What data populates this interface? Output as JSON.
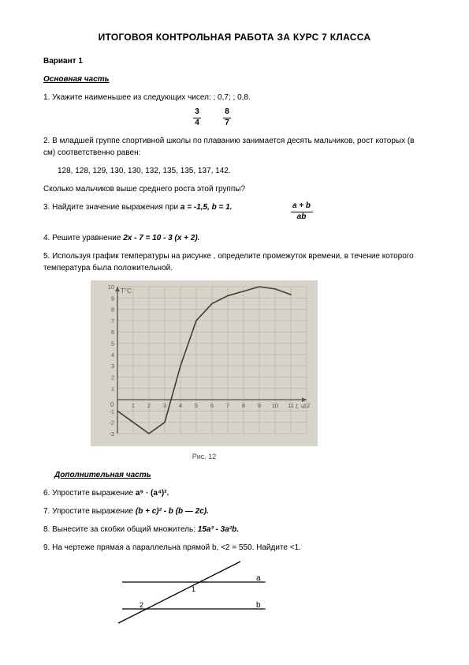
{
  "title": "ИТОГОВОЯ КОНТРОЛЬНАЯ РАБОТА ЗА КУРС 7 КЛАССА",
  "variant": "Вариант   1",
  "section_main": "Основная часть",
  "q1": {
    "text_a": "1.   Укажите наименьшее из следующих чисел:     ; 0,7;     ; 0,8.",
    "frac1": {
      "num": "3",
      "den": "4"
    },
    "frac2": {
      "num": "8",
      "den": "7"
    }
  },
  "q2": {
    "line1": "2.   В младшей группе спортивной школы по плаванию занимается десять мальчиков, рост которых (в см) соответственно равен:",
    "data": "128, 128, 129, 130, 130, 132, 135, 135, 137, 142.",
    "line2": "Сколько мальчиков выше среднего роста этой группы?"
  },
  "q3": {
    "text": "3.  Найдите значение выражения           при ",
    "cond_a": "a = -1,5, ",
    "cond_b": "b = 1.",
    "frac": {
      "num": "a + b",
      "den": "ab"
    }
  },
  "q4": {
    "pre": "4.  Решите уравнение ",
    "eq": "2x - 7 = 10 - 3 (x + 2)."
  },
  "q5": "5. Используя график температуры на рисунке , определите промежуток времени, в течение которого температура была положительной.",
  "chart": {
    "caption": "Рис. 12",
    "ylabel": "T°C",
    "xlabel": "t, ч",
    "y_ticks": [
      -3,
      -2,
      -1,
      0,
      1,
      2,
      3,
      4,
      5,
      6,
      7,
      8,
      9,
      10
    ],
    "x_ticks": [
      0,
      1,
      2,
      3,
      4,
      5,
      6,
      7,
      8,
      9,
      10,
      11,
      12
    ],
    "bg": "#d6d3cb",
    "grid": "#b8b3a6",
    "axis": "#5a584f",
    "line": "#3f3d36",
    "points": [
      [
        0,
        -1
      ],
      [
        1,
        -2
      ],
      [
        2,
        -3
      ],
      [
        3,
        -2
      ],
      [
        4,
        3
      ],
      [
        5,
        7
      ],
      [
        6,
        8.5
      ],
      [
        7,
        9.2
      ],
      [
        8,
        9.6
      ],
      [
        9,
        10
      ],
      [
        10,
        9.8
      ],
      [
        11,
        9.3
      ]
    ]
  },
  "section_extra": "Дополнительная часть",
  "q6": {
    "pre": "6.  Упростите выражение ",
    "expr": "a⁹ · (a⁴)²."
  },
  "q7": {
    "pre": "7.  Упростите выражение ",
    "expr": "(b + c)² - b (b — 2c)."
  },
  "q8": {
    "pre": "8.   Вынесите за скобки общий множитель: ",
    "expr": "15a³ - 3a²b."
  },
  "q9": "9. На чертеже   прямая a параллельна прямой b, <2 = 550. Найдите <1.",
  "geom": {
    "label_a": "a",
    "label_b": "b",
    "label_1": "1",
    "label_2": "2",
    "stroke": "#000000"
  }
}
